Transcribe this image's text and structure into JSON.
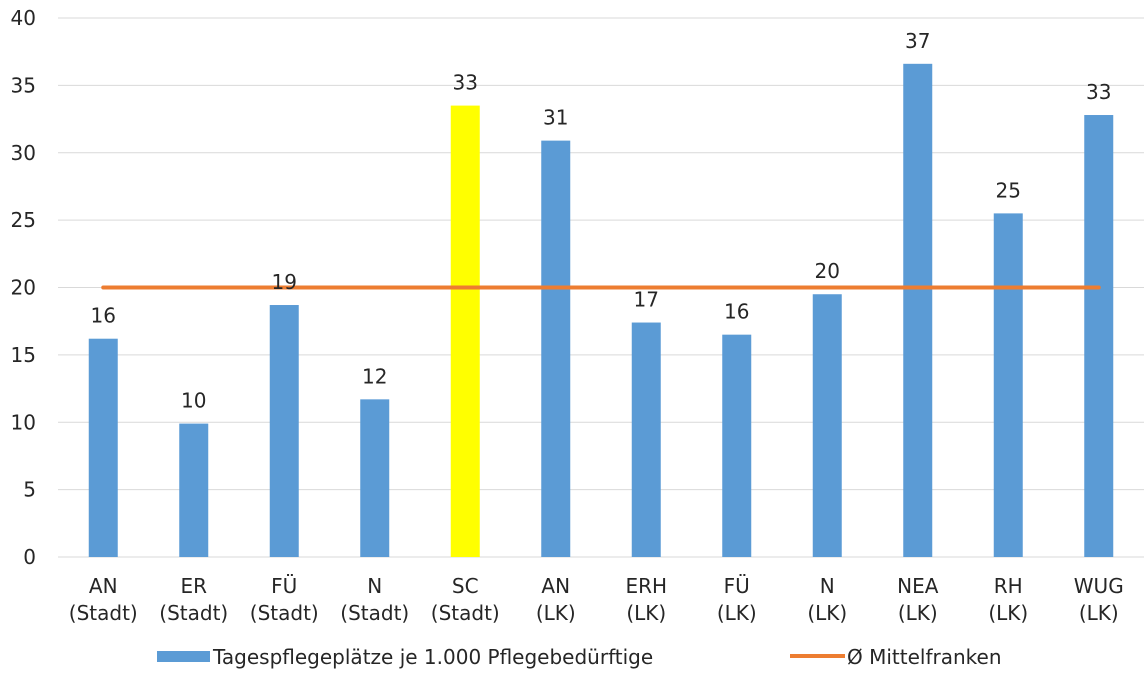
{
  "chart_data": {
    "type": "bar",
    "categories": [
      [
        "AN",
        "(Stadt)"
      ],
      [
        "ER",
        "(Stadt)"
      ],
      [
        "FÜ",
        "(Stadt)"
      ],
      [
        "N",
        "(Stadt)"
      ],
      [
        "SC",
        "(Stadt)"
      ],
      [
        "AN",
        "(LK)"
      ],
      [
        "ERH",
        "(LK)"
      ],
      [
        "FÜ",
        "(LK)"
      ],
      [
        "N",
        "(LK)"
      ],
      [
        "NEA",
        "(LK)"
      ],
      [
        "RH",
        "(LK)"
      ],
      [
        "WUG",
        "(LK)"
      ]
    ],
    "series": [
      {
        "name": "Tagespflegeplätze je 1.000 Pflegebedürftige",
        "values": [
          16.2,
          9.9,
          18.7,
          11.7,
          33.5,
          30.9,
          17.4,
          16.5,
          19.5,
          36.6,
          25.5,
          32.8
        ],
        "data_labels": [
          "16",
          "10",
          "19",
          "12",
          "33",
          "31",
          "17",
          "16",
          "20",
          "37",
          "25",
          "33"
        ],
        "color": "#5b9bd5",
        "highlight_index": 4,
        "highlight_color": "#ffff00"
      },
      {
        "name": "Ø Mittelfranken",
        "type": "line",
        "value": 20,
        "color": "#ed7d31"
      }
    ],
    "yticks": [
      "0",
      "5",
      "10",
      "15",
      "20",
      "25",
      "30",
      "35",
      "40"
    ],
    "ylim": [
      0,
      40
    ],
    "grid": true,
    "legend_position": "bottom"
  }
}
